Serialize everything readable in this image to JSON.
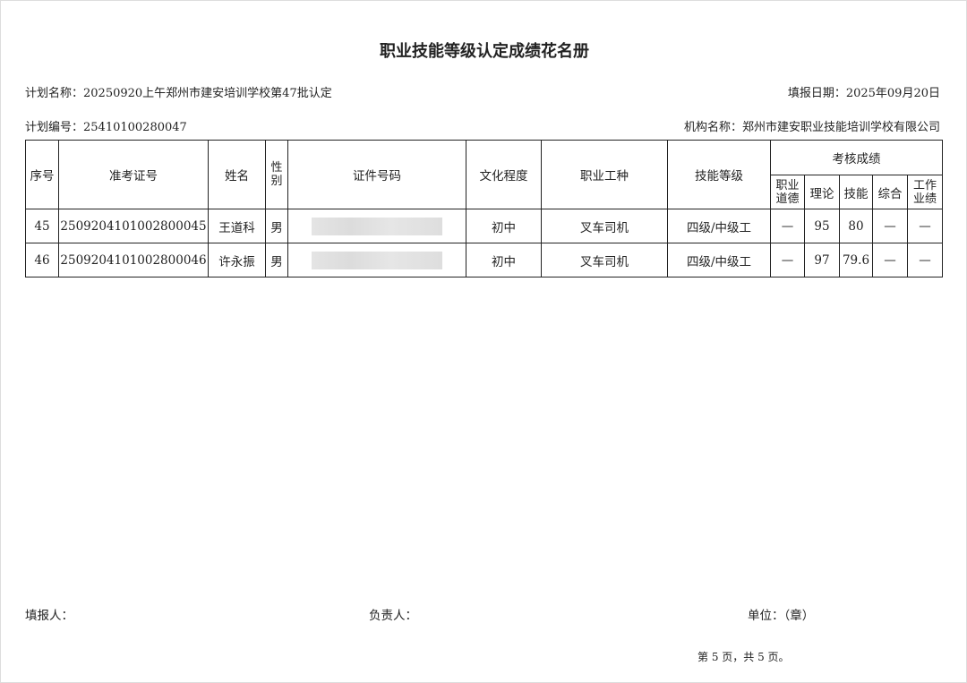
{
  "title": "职业技能等级认定成绩花名册",
  "plan_name": "计划名称：20250920上午郑州市建安培训学校第47批认定",
  "fill_date": "填报日期：2025年09月20日",
  "plan_no": "计划编号：25410100280047",
  "org_name": "机构名称：郑州市建安职业技能培训学校有限公司",
  "headers": {
    "seq": "序号",
    "exam_no": "准考证号",
    "name": "姓名",
    "gender": "性别",
    "id_no": "证件号码",
    "education": "文化程度",
    "occupation": "职业工种",
    "level": "技能等级",
    "scores": "考核成绩",
    "ethics": "职业道德",
    "theory": "理论",
    "skill": "技能",
    "overall": "综合",
    "work": "工作业绩"
  },
  "rows": [
    {
      "seq": "45",
      "exam_no": "2509204101002800045",
      "name": "王道科",
      "gender": "男",
      "education": "初中",
      "occupation": "叉车司机",
      "level": "四级/中级工",
      "ethics": "—",
      "theory": "95",
      "skill": "80",
      "overall": "—",
      "work": "—"
    },
    {
      "seq": "46",
      "exam_no": "2509204101002800046",
      "name": "许永振",
      "gender": "男",
      "education": "初中",
      "occupation": "叉车司机",
      "level": "四级/中级工",
      "ethics": "—",
      "theory": "97",
      "skill": "79.6",
      "overall": "—",
      "work": "—"
    }
  ],
  "footer": {
    "filler": "填报人：",
    "responsible": "负责人：",
    "unit": "单位：（章）",
    "pager": "第 5 页，共 5 页。"
  }
}
